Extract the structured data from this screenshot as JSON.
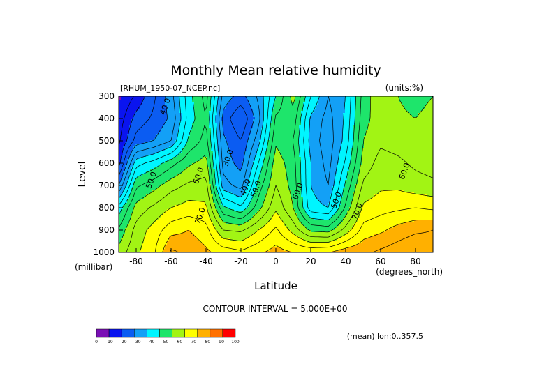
{
  "chart_data": {
    "type": "heatmap",
    "title": "Monthly Mean relative humidity",
    "subtitle": "[RHUM_1950-07_NCEP.nc]",
    "units_label": "(units:%)",
    "xlabel": "Latitude",
    "x_units": "(degrees_north)",
    "ylabel": "Level",
    "y_units": "(millibar)",
    "xlim": [
      -90,
      90
    ],
    "ylim": [
      1000,
      300
    ],
    "x_ticks": [
      "-80",
      "-60",
      "-40",
      "-20",
      "0",
      "20",
      "40",
      "60",
      "80"
    ],
    "y_ticks": [
      "300",
      "400",
      "500",
      "600",
      "700",
      "800",
      "900",
      "1000"
    ],
    "contour_interval_text": "CONTOUR INTERVAL = 5.000E+00",
    "footer_note": "(mean) lon:0..357.5",
    "colorbar": {
      "ticks": [
        "0",
        "10",
        "20",
        "30",
        "40",
        "50",
        "60",
        "70",
        "80",
        "90",
        "100"
      ],
      "colors": [
        "#7a10b5",
        "#0a14ef",
        "#0b5cf2",
        "#13a0f6",
        "#00f5ff",
        "#1ee56b",
        "#a2f414",
        "#ffff00",
        "#ffb000",
        "#ff7000",
        "#ff0000"
      ]
    },
    "contour_labels": [
      {
        "text": "40.0",
        "lat": -62,
        "lev": 350
      },
      {
        "text": "30.0",
        "lat": -26,
        "lev": 580
      },
      {
        "text": "40.0",
        "lat": -16,
        "lev": 712
      },
      {
        "text": "50.0",
        "lat": -10,
        "lev": 720
      },
      {
        "text": "50.0",
        "lat": -70,
        "lev": 680
      },
      {
        "text": "60.0",
        "lat": -43,
        "lev": 660
      },
      {
        "text": "60.0",
        "lat": 14,
        "lev": 730
      },
      {
        "text": "50.0",
        "lat": 36,
        "lev": 770
      },
      {
        "text": "70.0",
        "lat": 48,
        "lev": 820
      },
      {
        "text": "70.0",
        "lat": -42,
        "lev": 840
      },
      {
        "text": "60.0",
        "lat": 75,
        "lev": 640
      }
    ],
    "field": {
      "lat": [
        -90,
        -80,
        -70,
        -60,
        -50,
        -40,
        -30,
        -20,
        -10,
        0,
        10,
        20,
        30,
        40,
        50,
        60,
        70,
        80,
        90
      ],
      "levels": [
        300,
        400,
        500,
        600,
        700,
        800,
        900,
        1000
      ],
      "values": [
        [
          9,
          16,
          24,
          33,
          48,
          57,
          33,
          28,
          36,
          50,
          62,
          45,
          35,
          40,
          57,
          64,
          60,
          58,
          60
        ],
        [
          12,
          22,
          26,
          31,
          47,
          55,
          28,
          20,
          33,
          56,
          58,
          39,
          33,
          41,
          58,
          63,
          61,
          60,
          62
        ],
        [
          14,
          27,
          30,
          35,
          51,
          57,
          31,
          25,
          38,
          59,
          55,
          38,
          32,
          42,
          60,
          64,
          63,
          62,
          64
        ],
        [
          18,
          43,
          47,
          53,
          59,
          62,
          33,
          28,
          45,
          63,
          57,
          40,
          33,
          46,
          62,
          67,
          66,
          64,
          63
        ],
        [
          30,
          54,
          58,
          63,
          66,
          67,
          37,
          33,
          52,
          65,
          58,
          40,
          35,
          51,
          66,
          69,
          69,
          67,
          66
        ],
        [
          47,
          62,
          66,
          70,
          72,
          71,
          51,
          46,
          58,
          69,
          60,
          42,
          40,
          56,
          71,
          73,
          74,
          75,
          74
        ],
        [
          56,
          67,
          72,
          78,
          80,
          77,
          65,
          64,
          70,
          76,
          68,
          59,
          58,
          67,
          77,
          79,
          82,
          84,
          85
        ],
        [
          62,
          69,
          74,
          86,
          84,
          81,
          78,
          76,
          79,
          82,
          80,
          79,
          80,
          83,
          84,
          86,
          88,
          90,
          88
        ]
      ]
    }
  }
}
